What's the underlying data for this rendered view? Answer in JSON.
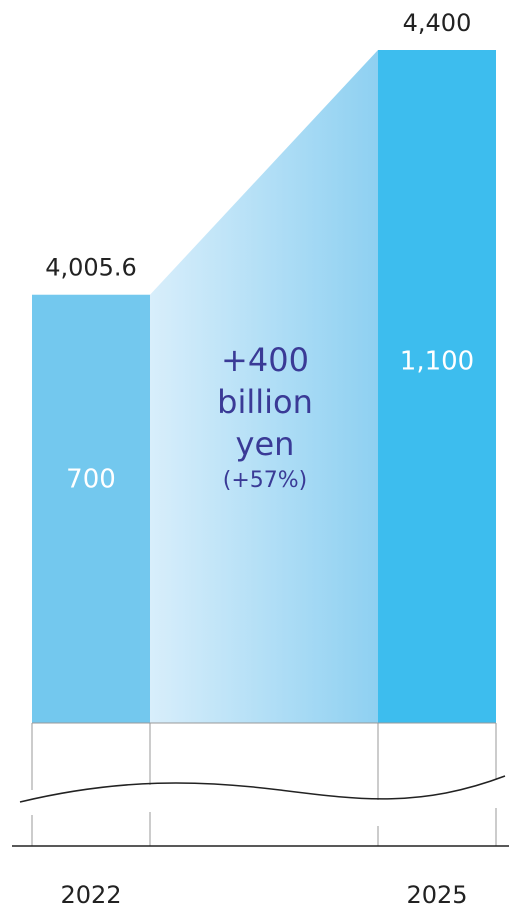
{
  "chart_data": {
    "type": "bar",
    "categories": [
      "2022",
      "2025"
    ],
    "values": [
      700,
      1100
    ],
    "value_labels": [
      "700",
      "1,100"
    ],
    "totals": [
      4005.6,
      4400
    ],
    "total_labels": [
      "4,005.6",
      "4,400"
    ],
    "colors": [
      "#73c8ee",
      "#3dbdee"
    ],
    "annotation_lines": [
      "+400",
      "billion",
      "yen"
    ],
    "annotation_sub": "(+57%)"
  }
}
